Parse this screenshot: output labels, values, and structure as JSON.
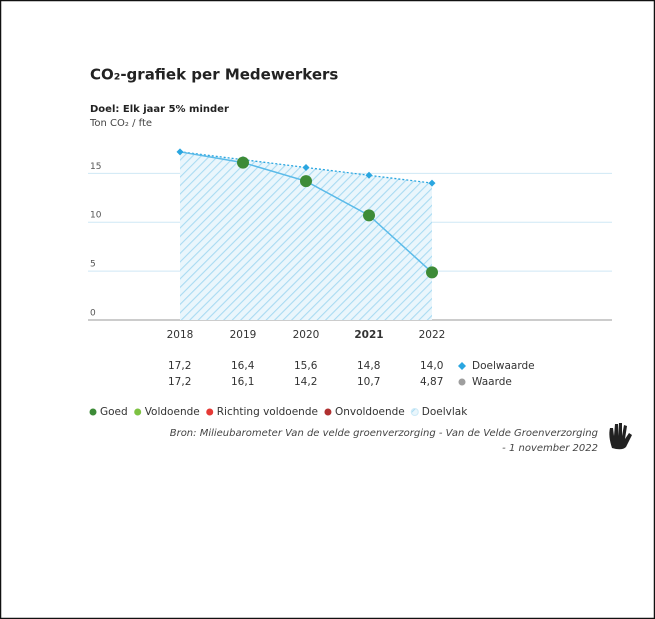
{
  "chart_data": {
    "type": "line",
    "title": "CO₂-grafiek per Medewerkers",
    "subtitle": "Doel: Elk jaar 5% minder",
    "y_label": "Ton CO₂ / fte",
    "categories": [
      "2018",
      "2019",
      "2020",
      "2021",
      "2022"
    ],
    "highlight_index": 3,
    "ylim": [
      0,
      18
    ],
    "yticks": [
      0,
      5,
      10,
      15
    ],
    "grid": true,
    "series": [
      {
        "name": "Doelwaarde",
        "color": "#2aa6e0",
        "values": [
          17.2,
          16.4,
          15.6,
          14.8,
          14.0
        ],
        "value_labels": [
          "17,2",
          "16,4",
          "15,6",
          "14,8",
          "14,0"
        ]
      },
      {
        "name": "Waarde",
        "color": "#5bbbe9",
        "legend_color": "#9e9e9e",
        "marker_colors": [
          null,
          "#3d8b37",
          "#3d8b37",
          "#3d8b37",
          "#3d8b37"
        ],
        "values": [
          17.2,
          16.1,
          14.2,
          10.7,
          4.87
        ],
        "value_labels": [
          "17,2",
          "16,1",
          "14,2",
          "10,7",
          "4,87"
        ]
      }
    ],
    "status_legend": [
      {
        "name": "Goed",
        "color": "#3d8b37"
      },
      {
        "name": "Voldoende",
        "color": "#7dc242"
      },
      {
        "name": "Richting voldoende",
        "color": "#e53935"
      },
      {
        "name": "Onvoldoende",
        "color": "#b03030"
      },
      {
        "name": "Doelvlak",
        "color": "#cdeaf7"
      }
    ],
    "source": [
      "Bron: Milieubarometer Van de velde groenverzorging - Van de Velde Groenverzorging",
      "- 1 november 2022"
    ]
  }
}
